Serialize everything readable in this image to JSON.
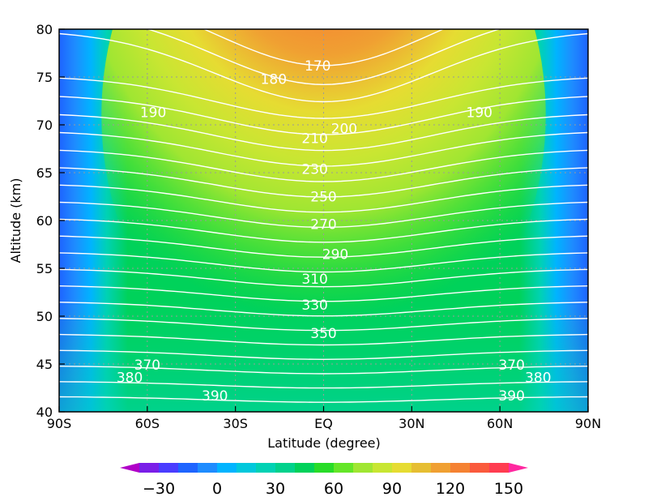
{
  "chart_data": {
    "type": "heatmap",
    "title": "",
    "xlabel": "Latitude (degree)",
    "ylabel": "Altitude (km)",
    "xlim": [
      -90,
      90
    ],
    "ylim": [
      40,
      80
    ],
    "x_ticks": [
      {
        "value": -90,
        "label": "90S"
      },
      {
        "value": -60,
        "label": "60S"
      },
      {
        "value": -30,
        "label": "30S"
      },
      {
        "value": 0,
        "label": "EQ"
      },
      {
        "value": 30,
        "label": "30N"
      },
      {
        "value": 60,
        "label": "60N"
      },
      {
        "value": 90,
        "label": "90N"
      }
    ],
    "y_ticks": [
      {
        "value": 40,
        "label": "40"
      },
      {
        "value": 45,
        "label": "45"
      },
      {
        "value": 50,
        "label": "50"
      },
      {
        "value": 55,
        "label": "55"
      },
      {
        "value": 60,
        "label": "60"
      },
      {
        "value": 65,
        "label": "65"
      },
      {
        "value": 70,
        "label": "70"
      },
      {
        "value": 75,
        "label": "75"
      },
      {
        "value": 80,
        "label": "80"
      }
    ],
    "grid": "dotted",
    "colorbar": {
      "levels": [
        -40,
        -30,
        -20,
        -10,
        0,
        10,
        20,
        30,
        40,
        50,
        60,
        70,
        80,
        90,
        100,
        110,
        120,
        130,
        140,
        150
      ],
      "colors": [
        "#b000c8",
        "#7a1ee8",
        "#4a3cff",
        "#1e64ff",
        "#1e8cff",
        "#00b4ff",
        "#00c8dc",
        "#00d2b4",
        "#00d28c",
        "#00d25a",
        "#28dc28",
        "#64e628",
        "#a0e632",
        "#c8e632",
        "#e6dc32",
        "#e6be32",
        "#f0a032",
        "#f58232",
        "#fa5a3c",
        "#ff3c50",
        "#ff28a0"
      ],
      "tick_values": [
        -30,
        0,
        30,
        60,
        90,
        120,
        150
      ],
      "tick_labels": [
        "−30",
        "0",
        "30",
        "60",
        "90",
        "120",
        "150"
      ],
      "placement": "bottom"
    },
    "field_shading": "filled contours of a quantity ranging about 0 to 150",
    "contours": {
      "color": "#ffffff",
      "levels": [
        170,
        180,
        190,
        200,
        210,
        220,
        230,
        240,
        250,
        260,
        270,
        280,
        290,
        300,
        310,
        320,
        330,
        340,
        350,
        360,
        370,
        380,
        390
      ],
      "labels": [
        {
          "text": "170",
          "lat": -2,
          "alt": 76.2
        },
        {
          "text": "180",
          "lat": -17,
          "alt": 74.8
        },
        {
          "text": "190",
          "lat": -58,
          "alt": 71.3
        },
        {
          "text": "190",
          "lat": 53,
          "alt": 71.3
        },
        {
          "text": "200",
          "lat": 7,
          "alt": 69.6
        },
        {
          "text": "210",
          "lat": -3,
          "alt": 68.6
        },
        {
          "text": "230",
          "lat": -3,
          "alt": 65.4
        },
        {
          "text": "250",
          "lat": 0,
          "alt": 62.5
        },
        {
          "text": "270",
          "lat": 0,
          "alt": 59.6
        },
        {
          "text": "290",
          "lat": 4,
          "alt": 56.5
        },
        {
          "text": "310",
          "lat": -3,
          "alt": 53.9
        },
        {
          "text": "330",
          "lat": -3,
          "alt": 51.2
        },
        {
          "text": "350",
          "lat": 0,
          "alt": 48.2
        },
        {
          "text": "370",
          "lat": -60,
          "alt": 44.9
        },
        {
          "text": "370",
          "lat": 64,
          "alt": 44.9
        },
        {
          "text": "380",
          "lat": -66,
          "alt": 43.6
        },
        {
          "text": "380",
          "lat": 73,
          "alt": 43.6
        },
        {
          "text": "390",
          "lat": -37,
          "alt": 41.7
        },
        {
          "text": "390",
          "lat": 64,
          "alt": 41.7
        }
      ]
    }
  }
}
